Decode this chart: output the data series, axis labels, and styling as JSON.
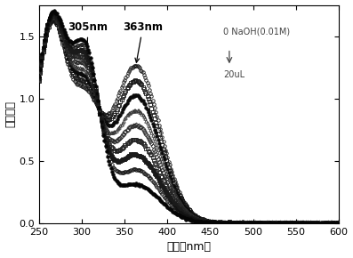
{
  "xlabel": "波长（nm）",
  "ylabel": "吸收强度",
  "xlim": [
    250,
    600
  ],
  "ylim": [
    0.0,
    1.75
  ],
  "yticks": [
    0.0,
    0.5,
    1.0,
    1.5
  ],
  "xticks": [
    250,
    300,
    350,
    400,
    450,
    500,
    550,
    600
  ],
  "peak1_label": "305nm",
  "peak2_label": "363nm",
  "annotation_text": "0 NaOH(0.01M)",
  "annotation_text2": "20uL",
  "n_curves": 9,
  "background": "#ffffff",
  "step": 5,
  "markersize": 2.5
}
